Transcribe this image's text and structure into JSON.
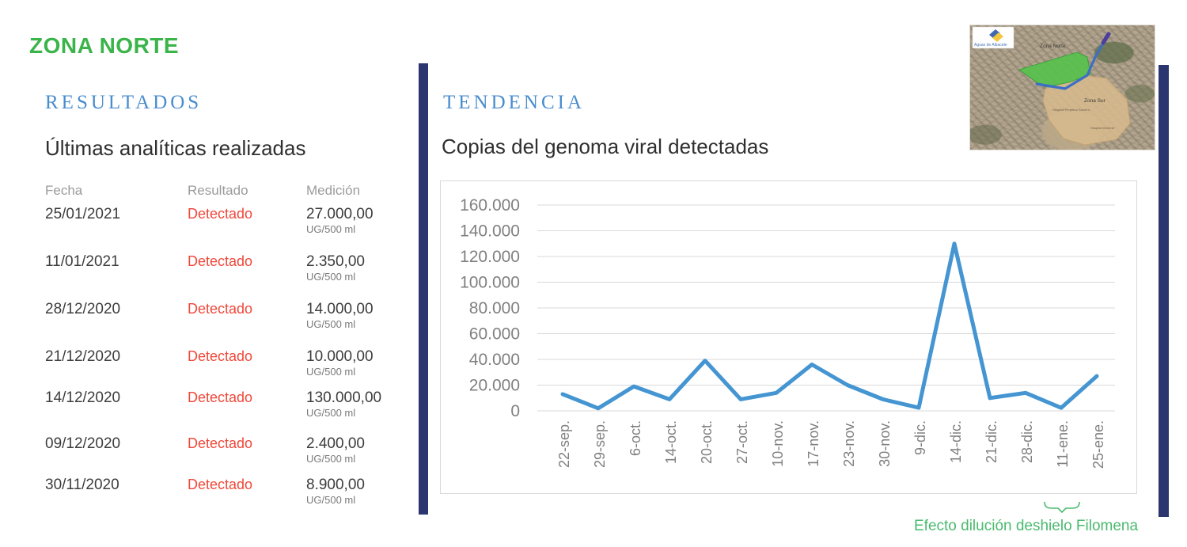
{
  "page": {
    "zone_title": "ZONA NORTE"
  },
  "colors": {
    "zone_green": "#3bb44a",
    "heading_blue": "#4a8cce",
    "detected_red": "#f0483a",
    "divider_navy": "#2b356f",
    "trend_line_blue": "#4495d1",
    "annotation_green": "#4aba6e",
    "grid_gray": "#d9d9d9",
    "axis_label_gray": "#808080"
  },
  "results": {
    "section_title": "RESULTADOS",
    "subtitle": "Últimas analíticas realizadas",
    "table": {
      "headers": [
        "Fecha",
        "Resultado",
        "Medición"
      ],
      "rows": [
        {
          "fecha": "25/01/2021",
          "resultado": "Detectado",
          "medicion": "27.000,00",
          "unidad": "UG/500 ml"
        },
        {
          "fecha": "11/01/2021",
          "resultado": "Detectado",
          "medicion": "2.350,00",
          "unidad": "UG/500 ml"
        },
        {
          "fecha": "28/12/2020",
          "resultado": "Detectado",
          "medicion": "14.000,00",
          "unidad": "UG/500 ml"
        },
        {
          "fecha": "21/12/2020",
          "resultado": "Detectado",
          "medicion": "10.000,00",
          "unidad": "UG/500 ml"
        },
        {
          "fecha": "14/12/2020",
          "resultado": "Detectado",
          "medicion": "130.000,00",
          "unidad": "UG/500 ml"
        },
        {
          "fecha": "09/12/2020",
          "resultado": "Detectado",
          "medicion": "2.400,00",
          "unidad": "UG/500 ml"
        },
        {
          "fecha": "30/11/2020",
          "resultado": "Detectado",
          "medicion": "8.900,00",
          "unidad": "UG/500 ml"
        }
      ]
    }
  },
  "tendencia": {
    "section_title": "TENDENCIA",
    "subtitle": "Copias del genoma viral detectadas",
    "annotation": "Efecto dilución deshielo Filomena"
  },
  "chart_data": {
    "type": "line",
    "title": "Copias del genoma viral detectadas",
    "categories": [
      "22-sep.",
      "29-sep.",
      "6-oct.",
      "14-oct.",
      "20-oct.",
      "27-oct.",
      "10-nov.",
      "17-nov.",
      "23-nov.",
      "30-nov.",
      "9-dic.",
      "14-dic.",
      "21-dic.",
      "28-dic.",
      "11-ene.",
      "25-ene."
    ],
    "values": [
      13000,
      2000,
      19000,
      9000,
      39000,
      9000,
      14000,
      36000,
      20000,
      8900,
      2400,
      130000,
      10000,
      14000,
      2350,
      27000
    ],
    "xlabel": "",
    "ylabel": "",
    "ylim": [
      0,
      160000
    ],
    "ytick_labels": [
      "0",
      "20.000",
      "40.000",
      "60.000",
      "80.000",
      "100.000",
      "120.000",
      "140.000",
      "160.000"
    ],
    "grid": true,
    "legend_position": "none",
    "line_color": "#4495d1"
  },
  "map": {
    "logo_text": "Aguas de Albacete",
    "label_north": "Zona Norte",
    "label_south": "Zona Sur",
    "label_hospital_1": "Hospital Perpetuo Socorro",
    "label_hospital_2": "Hospital General"
  }
}
